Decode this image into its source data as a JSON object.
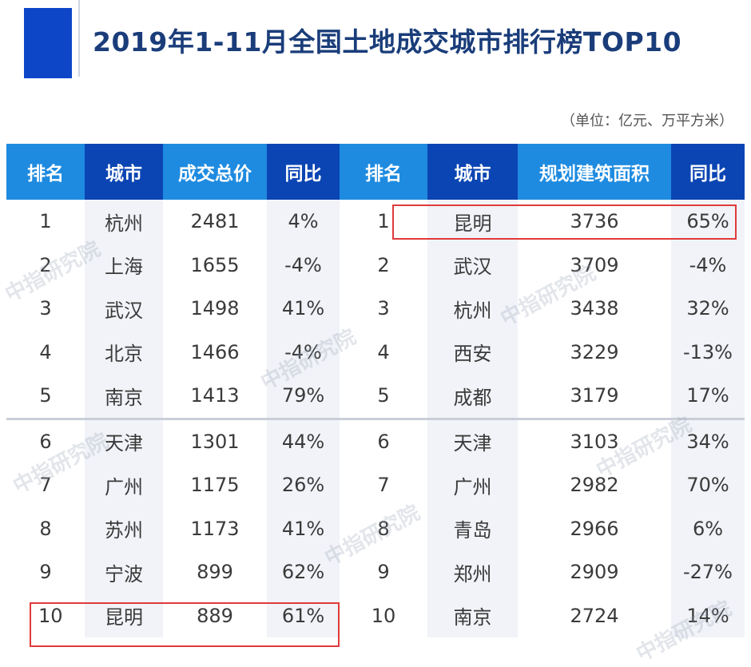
{
  "title": "2019年1-11月全国土地成交城市排行榜TOP10",
  "unit_note": "（单位：亿元、万平方米）",
  "watermark_text": "中指研究院",
  "chart_data": {
    "type": "table",
    "title": "2019年1-11月全国土地成交城市排行榜TOP10",
    "unit": "（单位：亿元、万平方米）",
    "columns": [
      "排名",
      "城市",
      "成交总价",
      "同比",
      "排名",
      "城市",
      "规划建筑面积",
      "同比"
    ],
    "rows": [
      [
        "1",
        "杭州",
        "2481",
        "4%",
        "1",
        "昆明",
        "3736",
        "65%"
      ],
      [
        "2",
        "上海",
        "1655",
        "-4%",
        "2",
        "武汉",
        "3709",
        "-4%"
      ],
      [
        "3",
        "武汉",
        "1498",
        "41%",
        "3",
        "杭州",
        "3438",
        "32%"
      ],
      [
        "4",
        "北京",
        "1466",
        "-4%",
        "4",
        "西安",
        "3229",
        "-13%"
      ],
      [
        "5",
        "南京",
        "1413",
        "79%",
        "5",
        "成都",
        "3179",
        "17%"
      ],
      [
        "6",
        "天津",
        "1301",
        "44%",
        "6",
        "天津",
        "3103",
        "34%"
      ],
      [
        "7",
        "广州",
        "1175",
        "26%",
        "7",
        "广州",
        "2982",
        "70%"
      ],
      [
        "8",
        "苏州",
        "1173",
        "41%",
        "8",
        "青岛",
        "2966",
        "6%"
      ],
      [
        "9",
        "宁波",
        "899",
        "62%",
        "9",
        "郑州",
        "2909",
        "-27%"
      ],
      [
        "10",
        "昆明",
        "889",
        "61%",
        "10",
        "南京",
        "2724",
        "14%"
      ]
    ],
    "highlighted_rows": {
      "left": [
        10
      ],
      "right": [
        1
      ]
    },
    "colors": {
      "header_light": "#1e8be0",
      "header_dark": "#0b45b3",
      "highlight_border": "#e03a3a"
    }
  }
}
